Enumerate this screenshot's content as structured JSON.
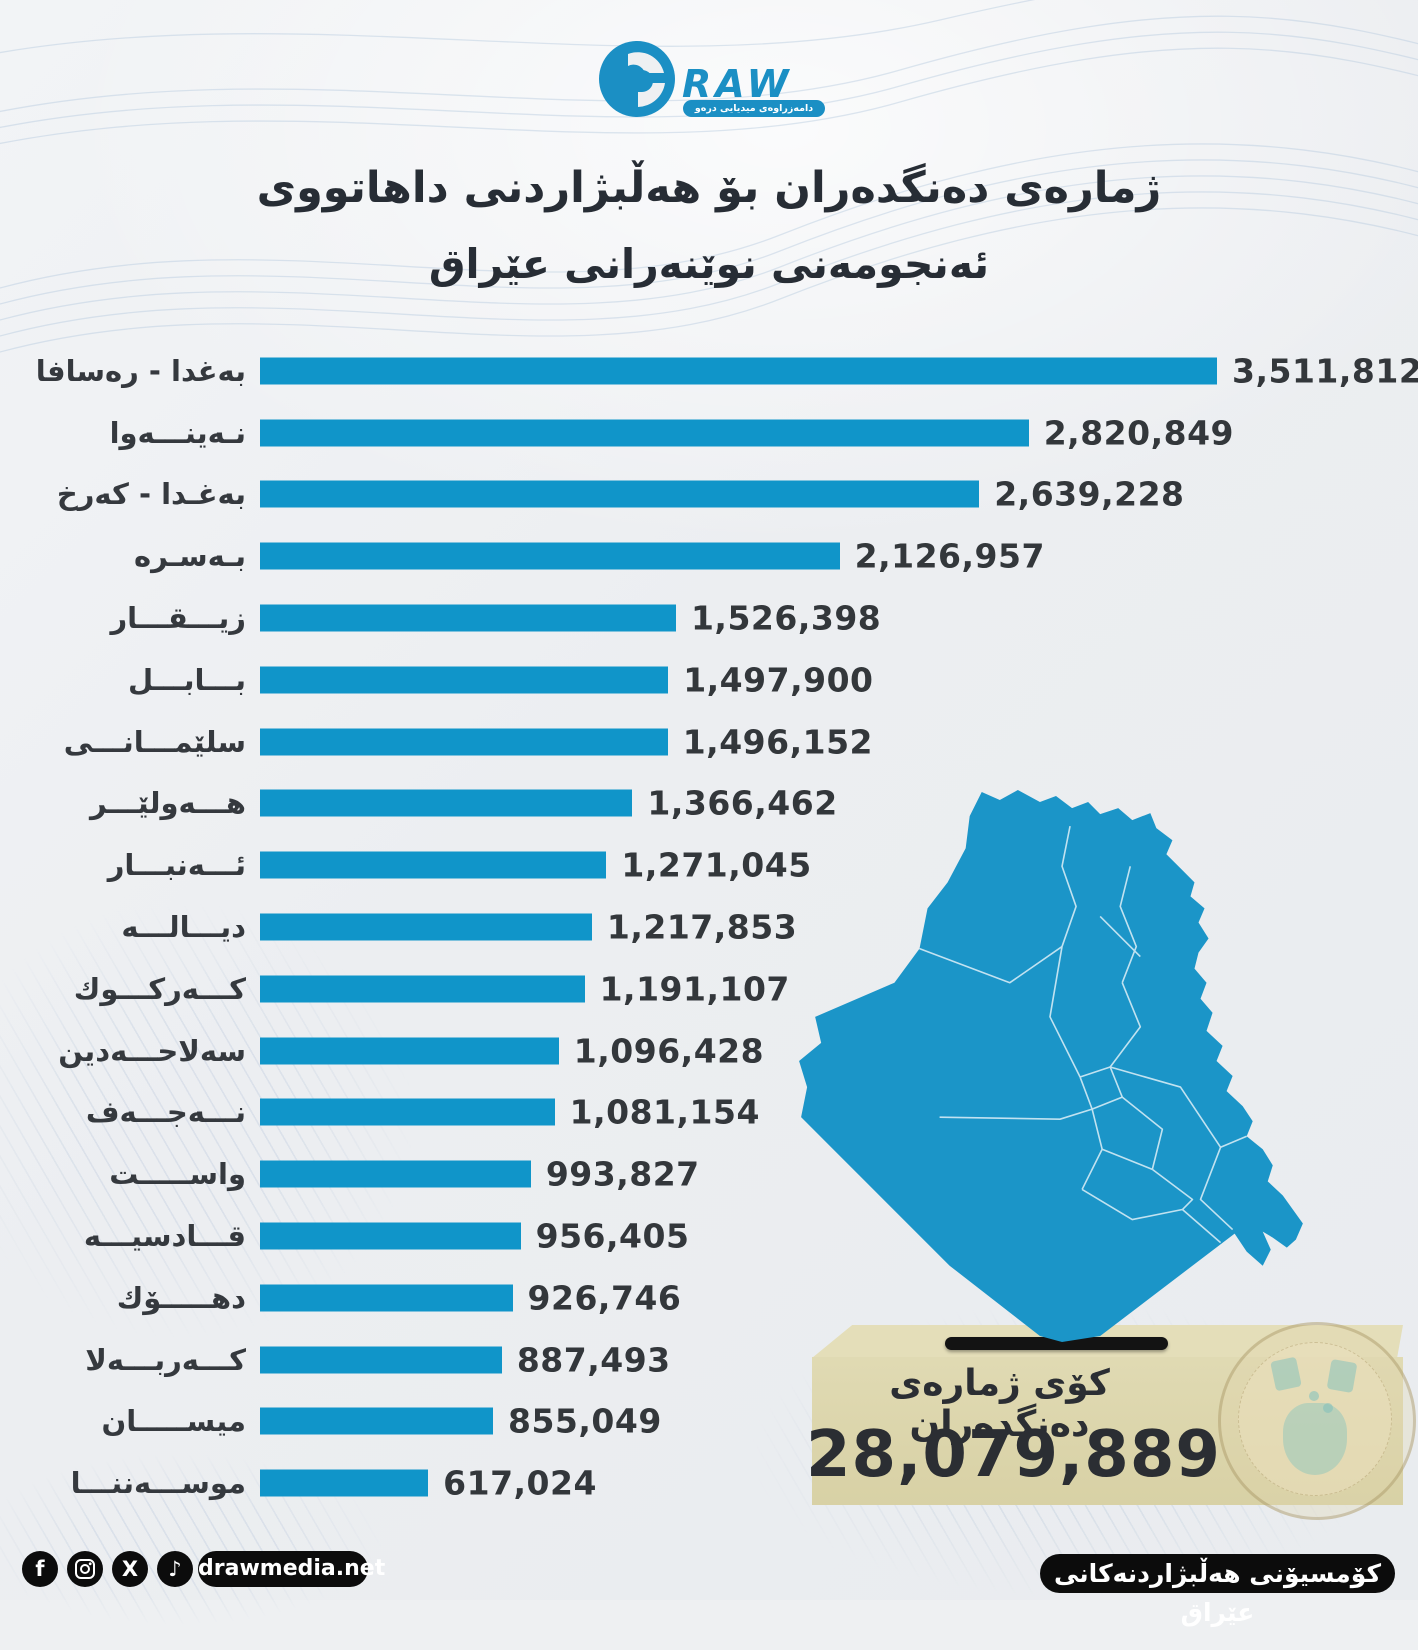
{
  "logo": {
    "raw": "RAW",
    "tagline": "دامەزراوەی میدیایی درەو"
  },
  "title": {
    "line1": "ژمارەی دەنگدەران بۆ هەڵبژاردنی داهاتووی",
    "line2": "ئەنجومەنی نوێنەرانی عێراق"
  },
  "chart_data": {
    "type": "bar",
    "orientation": "horizontal",
    "bar_color": "#1095c9",
    "max_value": 3511812,
    "categories": [
      "بەغدا - رەسافا",
      "نـەینـــەوا",
      "بەغـدا - کەرخ",
      "بـەسـرە",
      "زیـــقـــار",
      "بـــابـــل",
      "سلێمـــانـــی",
      "هـــەولێـــر",
      "ئـــەنبـــار",
      "دیـــالـــە",
      "کـــەرکـــوك",
      "سەلاحـــەدین",
      "نـــەجـــەف",
      "واســـــت",
      "قـــادسیـــە",
      "دهـــــۆك",
      "کـــەربـــەلا",
      "میســـــان",
      "موســـەننـــا"
    ],
    "values": [
      3511812,
      2820849,
      2639228,
      2126957,
      1526398,
      1497900,
      1496152,
      1366462,
      1271045,
      1217853,
      1191107,
      1096428,
      1081154,
      993827,
      956405,
      926746,
      887493,
      855049,
      617024
    ],
    "value_labels": [
      "3,511,812",
      "2,820,849",
      "2,639,228",
      "2,126,957",
      "1,526,398",
      "1,497,900",
      "1,496,152",
      "1,366,462",
      "1,271,045",
      "1,217,853",
      "1,191,107",
      "1,096,428",
      "1,081,154",
      "993,827",
      "956,405",
      "926,746",
      "887,493",
      "855,049",
      "617,024"
    ]
  },
  "map": {
    "label": "iraq-map",
    "fill": "#1b95c8"
  },
  "total_box": {
    "label": "کۆی ژمارەی دەنگدەران",
    "value": "28,079,889"
  },
  "footer": {
    "icons": [
      "facebook-icon",
      "instagram-icon",
      "x-icon",
      "tiktok-icon"
    ],
    "facebook_glyph": "f",
    "x_glyph": "X",
    "tiktok_glyph": "♪",
    "website": "drawmedia.net",
    "source": "کۆمسیۆنی هەڵبژاردنەکانی عێراق"
  }
}
